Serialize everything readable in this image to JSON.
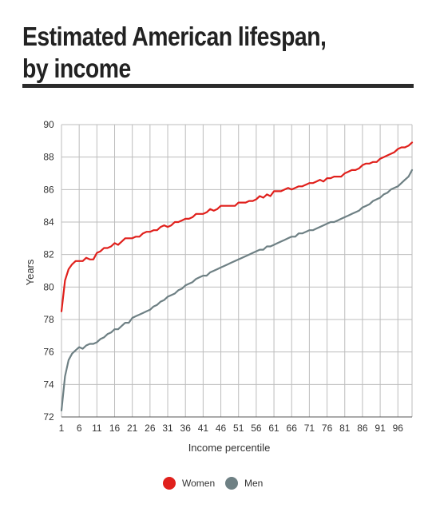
{
  "title_lines": [
    "Estimated American lifespan,",
    "by income"
  ],
  "chart_data": {
    "type": "line",
    "title": "Estimated American lifespan, by income",
    "xlabel": "Income percentile",
    "ylabel": "Years",
    "xlim": [
      1,
      100
    ],
    "ylim": [
      72,
      90
    ],
    "yticks": [
      72,
      74,
      76,
      78,
      80,
      82,
      84,
      86,
      88,
      90
    ],
    "xticks": [
      1,
      6,
      11,
      16,
      21,
      26,
      31,
      36,
      41,
      46,
      51,
      56,
      61,
      66,
      71,
      76,
      81,
      86,
      91,
      96
    ],
    "grid": true,
    "legend_position": "bottom",
    "series": [
      {
        "name": "Women",
        "color": "#e0201c",
        "x": [
          1,
          2,
          3,
          4,
          5,
          6,
          7,
          8,
          9,
          10,
          11,
          12,
          13,
          14,
          15,
          16,
          17,
          18,
          19,
          20,
          21,
          22,
          23,
          24,
          25,
          26,
          27,
          28,
          29,
          30,
          31,
          32,
          33,
          34,
          35,
          36,
          37,
          38,
          39,
          40,
          41,
          42,
          43,
          44,
          45,
          46,
          47,
          48,
          49,
          50,
          51,
          52,
          53,
          54,
          55,
          56,
          57,
          58,
          59,
          60,
          61,
          62,
          63,
          64,
          65,
          66,
          67,
          68,
          69,
          70,
          71,
          72,
          73,
          74,
          75,
          76,
          77,
          78,
          79,
          80,
          81,
          82,
          83,
          84,
          85,
          86,
          87,
          88,
          89,
          90,
          91,
          92,
          93,
          94,
          95,
          96,
          97,
          98,
          99,
          100
        ],
        "values": [
          78.5,
          80.4,
          81.1,
          81.4,
          81.6,
          81.6,
          81.6,
          81.8,
          81.7,
          81.7,
          82.1,
          82.2,
          82.4,
          82.4,
          82.5,
          82.7,
          82.6,
          82.8,
          83.0,
          83.0,
          83.0,
          83.1,
          83.1,
          83.3,
          83.4,
          83.4,
          83.5,
          83.5,
          83.7,
          83.8,
          83.7,
          83.8,
          84.0,
          84.0,
          84.1,
          84.2,
          84.2,
          84.3,
          84.5,
          84.5,
          84.5,
          84.6,
          84.8,
          84.7,
          84.8,
          85.0,
          85.0,
          85.0,
          85.0,
          85.0,
          85.2,
          85.2,
          85.2,
          85.3,
          85.3,
          85.4,
          85.6,
          85.5,
          85.7,
          85.6,
          85.9,
          85.9,
          85.9,
          86.0,
          86.1,
          86.0,
          86.1,
          86.2,
          86.2,
          86.3,
          86.4,
          86.4,
          86.5,
          86.6,
          86.5,
          86.7,
          86.7,
          86.8,
          86.8,
          86.8,
          87.0,
          87.1,
          87.2,
          87.2,
          87.3,
          87.5,
          87.6,
          87.6,
          87.7,
          87.7,
          87.9,
          88.0,
          88.1,
          88.2,
          88.3,
          88.5,
          88.6,
          88.6,
          88.7,
          88.9
        ]
      },
      {
        "name": "Men",
        "color": "#6e8084",
        "x": [
          1,
          2,
          3,
          4,
          5,
          6,
          7,
          8,
          9,
          10,
          11,
          12,
          13,
          14,
          15,
          16,
          17,
          18,
          19,
          20,
          21,
          22,
          23,
          24,
          25,
          26,
          27,
          28,
          29,
          30,
          31,
          32,
          33,
          34,
          35,
          36,
          37,
          38,
          39,
          40,
          41,
          42,
          43,
          44,
          45,
          46,
          47,
          48,
          49,
          50,
          51,
          52,
          53,
          54,
          55,
          56,
          57,
          58,
          59,
          60,
          61,
          62,
          63,
          64,
          65,
          66,
          67,
          68,
          69,
          70,
          71,
          72,
          73,
          74,
          75,
          76,
          77,
          78,
          79,
          80,
          81,
          82,
          83,
          84,
          85,
          86,
          87,
          88,
          89,
          90,
          91,
          92,
          93,
          94,
          95,
          96,
          97,
          98,
          99,
          100
        ],
        "values": [
          72.4,
          74.5,
          75.5,
          75.9,
          76.1,
          76.3,
          76.2,
          76.4,
          76.5,
          76.5,
          76.6,
          76.8,
          76.9,
          77.1,
          77.2,
          77.4,
          77.4,
          77.6,
          77.8,
          77.8,
          78.1,
          78.2,
          78.3,
          78.4,
          78.5,
          78.6,
          78.8,
          78.9,
          79.1,
          79.2,
          79.4,
          79.5,
          79.6,
          79.8,
          79.9,
          80.1,
          80.2,
          80.3,
          80.5,
          80.6,
          80.7,
          80.7,
          80.9,
          81.0,
          81.1,
          81.2,
          81.3,
          81.4,
          81.5,
          81.6,
          81.7,
          81.8,
          81.9,
          82.0,
          82.1,
          82.2,
          82.3,
          82.3,
          82.5,
          82.5,
          82.6,
          82.7,
          82.8,
          82.9,
          83.0,
          83.1,
          83.1,
          83.3,
          83.3,
          83.4,
          83.5,
          83.5,
          83.6,
          83.7,
          83.8,
          83.9,
          84.0,
          84.0,
          84.1,
          84.2,
          84.3,
          84.4,
          84.5,
          84.6,
          84.7,
          84.9,
          85.0,
          85.1,
          85.3,
          85.4,
          85.5,
          85.7,
          85.8,
          86.0,
          86.1,
          86.2,
          86.4,
          86.6,
          86.8,
          87.2
        ]
      }
    ]
  }
}
